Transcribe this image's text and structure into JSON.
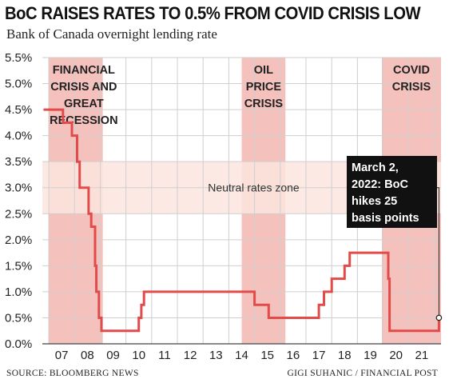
{
  "chart_data": {
    "type": "line",
    "title": "BoC RAISES RATES TO 0.5% FROM COVID CRISIS LOW",
    "subtitle": "Bank of Canada overnight lending rate",
    "x_tick_labels": [
      "07",
      "08",
      "09",
      "10",
      "11",
      "12",
      "13",
      "14",
      "15",
      "16",
      "17",
      "18",
      "19",
      "20",
      "21"
    ],
    "y_tick_labels": [
      "0.0%",
      "0.5%",
      "1.0%",
      "1.5%",
      "2.0%",
      "2.5%",
      "3.0%",
      "3.5%",
      "4.0%",
      "4.5%",
      "5.0%",
      "5.5%"
    ],
    "xlim": [
      2006.75,
      2022.25
    ],
    "ylim": [
      0,
      5.5
    ],
    "grid": true,
    "line_color": "#e34a4a",
    "shade_color": "#f5c1bd",
    "zone_color": "#fbe5df",
    "series": [
      {
        "x": [
          2006.8,
          2007.55,
          2007.55,
          2007.9,
          2007.9,
          2008.1,
          2008.1,
          2008.2,
          2008.2,
          2008.3,
          2008.3,
          2008.55,
          2008.55,
          2008.65,
          2008.65,
          2008.8,
          2008.8,
          2008.85,
          2008.85,
          2008.95,
          2008.95,
          2009.05,
          2009.05,
          2009.15,
          2009.15,
          2009.3,
          2009.3,
          2010.5,
          2010.5,
          2010.6,
          2010.6,
          2010.7,
          2010.7,
          2015.0,
          2015.0,
          2015.55,
          2015.55,
          2017.5,
          2017.5,
          2017.7,
          2017.7,
          2018.0,
          2018.0,
          2018.5,
          2018.5,
          2018.7,
          2018.7,
          2020.2,
          2020.2,
          2020.25,
          2020.25,
          2022.17,
          2022.17
        ],
        "y": [
          4.5,
          4.5,
          4.25,
          4.25,
          4.0,
          4.0,
          3.5,
          3.5,
          3.0,
          3.0,
          3.0,
          3.0,
          2.5,
          2.5,
          2.25,
          2.25,
          1.5,
          1.5,
          1.0,
          1.0,
          0.5,
          0.5,
          0.25,
          0.25,
          0.25,
          0.25,
          0.25,
          0.25,
          0.5,
          0.5,
          0.75,
          0.75,
          1.0,
          1.0,
          0.75,
          0.75,
          0.5,
          0.5,
          0.75,
          0.75,
          1.0,
          1.0,
          1.25,
          1.25,
          1.5,
          1.5,
          1.75,
          1.75,
          1.25,
          1.25,
          0.25,
          0.25,
          0.5
        ]
      }
    ],
    "shaded_periods": [
      {
        "start": 2007.0,
        "end": 2009.1,
        "label": [
          "FINANCIAL",
          "CRISIS AND",
          "GREAT",
          "RECESSION"
        ]
      },
      {
        "start": 2014.5,
        "end": 2016.2,
        "label": [
          "OIL",
          "PRICE",
          "CRISIS"
        ]
      },
      {
        "start": 2019.95,
        "end": 2022.25,
        "label": [
          "COVID",
          "CRISIS"
        ]
      }
    ],
    "zone": {
      "low": 2.5,
      "high": 3.5,
      "label": "Neutral rates zone"
    },
    "annotation": {
      "x": 2022.17,
      "y": 0.5,
      "lines": [
        "March 2,",
        "2022: BoC",
        "hikes 25",
        "basis points"
      ]
    }
  },
  "footer": {
    "source": "SOURCE: BLOOMBERG NEWS",
    "credit": "GIGI SUHANIC / FINANCIAL POST"
  }
}
